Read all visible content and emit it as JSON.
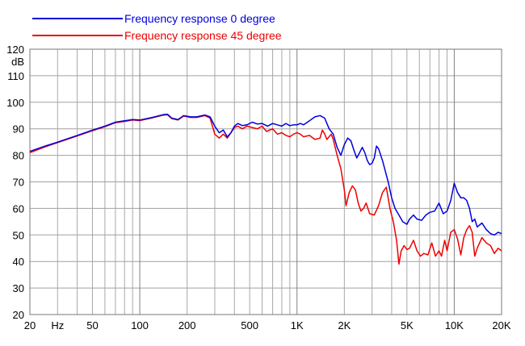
{
  "chart_data": {
    "type": "line",
    "x_scale": "log",
    "xlim": [
      20,
      20000
    ],
    "ylim": [
      20,
      120
    ],
    "ylabel": "dB",
    "x_unit_label": "Hz",
    "grid": true,
    "legend_placement": "top-left",
    "x_tick_labels": [
      {
        "x": 20,
        "label": "20"
      },
      {
        "x": 50,
        "label": "50"
      },
      {
        "x": 100,
        "label": "100"
      },
      {
        "x": 200,
        "label": "200"
      },
      {
        "x": 500,
        "label": "500"
      },
      {
        "x": 1000,
        "label": "1K"
      },
      {
        "x": 2000,
        "label": "2K"
      },
      {
        "x": 5000,
        "label": "5K"
      },
      {
        "x": 10000,
        "label": "10K"
      },
      {
        "x": 20000,
        "label": "20K"
      }
    ],
    "y_ticks": [
      20,
      30,
      40,
      50,
      60,
      70,
      80,
      90,
      100,
      110,
      120
    ],
    "series": [
      {
        "name": "Frequency response 0 degree",
        "color": "#0000dd",
        "points": [
          [
            20,
            81.5
          ],
          [
            25,
            83.5
          ],
          [
            30,
            85
          ],
          [
            40,
            87.5
          ],
          [
            50,
            89.5
          ],
          [
            60,
            91
          ],
          [
            70,
            92.5
          ],
          [
            80,
            93
          ],
          [
            90,
            93.5
          ],
          [
            100,
            93.3
          ],
          [
            120,
            94.3
          ],
          [
            140,
            95.3
          ],
          [
            150,
            95.5
          ],
          [
            160,
            94
          ],
          [
            175,
            93.5
          ],
          [
            190,
            95
          ],
          [
            210,
            94.5
          ],
          [
            230,
            94.5
          ],
          [
            260,
            95.2
          ],
          [
            280,
            94.5
          ],
          [
            300,
            91
          ],
          [
            320,
            88.5
          ],
          [
            340,
            89.5
          ],
          [
            360,
            87
          ],
          [
            380,
            88.5
          ],
          [
            400,
            91
          ],
          [
            420,
            92
          ],
          [
            450,
            91.2
          ],
          [
            480,
            91.5
          ],
          [
            520,
            92.5
          ],
          [
            560,
            91.8
          ],
          [
            600,
            92
          ],
          [
            650,
            91
          ],
          [
            700,
            92
          ],
          [
            750,
            91.5
          ],
          [
            800,
            91
          ],
          [
            850,
            92
          ],
          [
            900,
            91.2
          ],
          [
            950,
            91.5
          ],
          [
            1000,
            91.5
          ],
          [
            1050,
            92
          ],
          [
            1100,
            91.5
          ],
          [
            1200,
            93
          ],
          [
            1300,
            94.5
          ],
          [
            1400,
            95
          ],
          [
            1500,
            94
          ],
          [
            1600,
            90
          ],
          [
            1700,
            88
          ],
          [
            1800,
            83
          ],
          [
            1900,
            80
          ],
          [
            2000,
            84
          ],
          [
            2100,
            86.5
          ],
          [
            2200,
            85.5
          ],
          [
            2300,
            82
          ],
          [
            2400,
            79
          ],
          [
            2500,
            81
          ],
          [
            2600,
            83
          ],
          [
            2700,
            81
          ],
          [
            2800,
            78
          ],
          [
            2900,
            76.5
          ],
          [
            3000,
            77
          ],
          [
            3100,
            79
          ],
          [
            3200,
            83.5
          ],
          [
            3300,
            82.5
          ],
          [
            3500,
            78
          ],
          [
            3800,
            70
          ],
          [
            4000,
            64
          ],
          [
            4200,
            60
          ],
          [
            4400,
            58
          ],
          [
            4700,
            55
          ],
          [
            5000,
            54
          ],
          [
            5200,
            56
          ],
          [
            5500,
            57.5
          ],
          [
            5800,
            56
          ],
          [
            6200,
            55.5
          ],
          [
            6600,
            57.5
          ],
          [
            7000,
            58.5
          ],
          [
            7500,
            59
          ],
          [
            8000,
            62
          ],
          [
            8500,
            58
          ],
          [
            9000,
            59
          ],
          [
            9500,
            63
          ],
          [
            10000,
            69.5
          ],
          [
            10500,
            66
          ],
          [
            11000,
            64
          ],
          [
            11500,
            64
          ],
          [
            12000,
            63
          ],
          [
            12500,
            60
          ],
          [
            13000,
            55
          ],
          [
            13500,
            56
          ],
          [
            14000,
            53
          ],
          [
            15000,
            54.5
          ],
          [
            16000,
            52
          ],
          [
            17000,
            50.5
          ],
          [
            18000,
            50
          ],
          [
            19000,
            51
          ],
          [
            20000,
            50.5
          ]
        ]
      },
      {
        "name": "Frequency response 45 degree",
        "color": "#ee0000",
        "points": [
          [
            20,
            81
          ],
          [
            25,
            83.2
          ],
          [
            30,
            84.8
          ],
          [
            40,
            87.3
          ],
          [
            50,
            89.3
          ],
          [
            60,
            90.8
          ],
          [
            70,
            92.3
          ],
          [
            80,
            92.8
          ],
          [
            90,
            93.3
          ],
          [
            100,
            93.1
          ],
          [
            120,
            94.1
          ],
          [
            140,
            95.1
          ],
          [
            150,
            95.3
          ],
          [
            160,
            93.8
          ],
          [
            175,
            93.3
          ],
          [
            190,
            94.8
          ],
          [
            210,
            94.3
          ],
          [
            230,
            94.3
          ],
          [
            260,
            95
          ],
          [
            280,
            94
          ],
          [
            300,
            88
          ],
          [
            320,
            86.5
          ],
          [
            340,
            88
          ],
          [
            360,
            86.5
          ],
          [
            380,
            88.5
          ],
          [
            400,
            90.5
          ],
          [
            420,
            91
          ],
          [
            450,
            90
          ],
          [
            480,
            91
          ],
          [
            520,
            90.5
          ],
          [
            560,
            90
          ],
          [
            600,
            91
          ],
          [
            640,
            89
          ],
          [
            700,
            90
          ],
          [
            750,
            88
          ],
          [
            800,
            88.5
          ],
          [
            850,
            87.5
          ],
          [
            900,
            87
          ],
          [
            950,
            88
          ],
          [
            1000,
            88.5
          ],
          [
            1050,
            88
          ],
          [
            1100,
            87
          ],
          [
            1200,
            87.5
          ],
          [
            1300,
            86
          ],
          [
            1400,
            86.5
          ],
          [
            1450,
            89.5
          ],
          [
            1500,
            88
          ],
          [
            1550,
            86
          ],
          [
            1650,
            88
          ],
          [
            1700,
            86
          ],
          [
            1800,
            80
          ],
          [
            1900,
            75
          ],
          [
            2000,
            67
          ],
          [
            2050,
            61
          ],
          [
            2150,
            66
          ],
          [
            2250,
            68.5
          ],
          [
            2350,
            67
          ],
          [
            2450,
            62
          ],
          [
            2550,
            59
          ],
          [
            2650,
            60
          ],
          [
            2750,
            62
          ],
          [
            2900,
            58
          ],
          [
            3100,
            57.5
          ],
          [
            3300,
            61
          ],
          [
            3500,
            66
          ],
          [
            3700,
            68
          ],
          [
            3900,
            60
          ],
          [
            4100,
            55
          ],
          [
            4300,
            48
          ],
          [
            4450,
            39
          ],
          [
            4600,
            44
          ],
          [
            4800,
            46
          ],
          [
            5000,
            44.5
          ],
          [
            5200,
            45
          ],
          [
            5500,
            48
          ],
          [
            5800,
            44
          ],
          [
            6100,
            42
          ],
          [
            6400,
            43
          ],
          [
            6800,
            42.5
          ],
          [
            7200,
            47
          ],
          [
            7600,
            42
          ],
          [
            8000,
            44
          ],
          [
            8300,
            42
          ],
          [
            8700,
            48
          ],
          [
            9000,
            44
          ],
          [
            9500,
            51
          ],
          [
            10000,
            52
          ],
          [
            10500,
            48.5
          ],
          [
            11000,
            42.5
          ],
          [
            11500,
            49
          ],
          [
            12000,
            52
          ],
          [
            12500,
            53.5
          ],
          [
            13000,
            51
          ],
          [
            13500,
            42
          ],
          [
            14000,
            45
          ],
          [
            15000,
            49
          ],
          [
            16000,
            47
          ],
          [
            17000,
            46
          ],
          [
            18000,
            43
          ],
          [
            19000,
            45
          ],
          [
            20000,
            44
          ]
        ]
      }
    ]
  }
}
